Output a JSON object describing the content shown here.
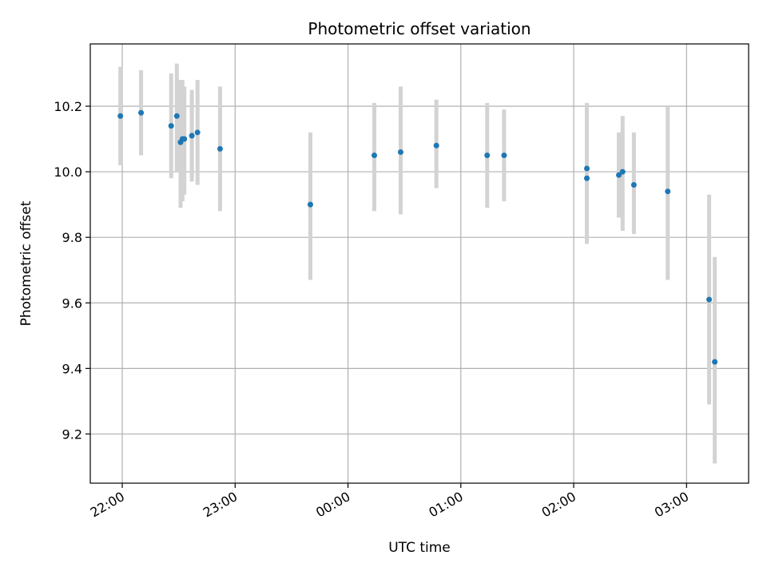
{
  "chart_data": {
    "type": "scatter",
    "title": "Photometric offset variation",
    "xlabel": "UTC time",
    "ylabel": "Photometric offset",
    "x_ticks": [
      "22:00",
      "23:00",
      "00:00",
      "01:00",
      "02:00",
      "03:00"
    ],
    "y_ticks": [
      "9.2",
      "9.4",
      "9.6",
      "9.8",
      "10.0",
      "10.2"
    ],
    "y_tick_values": [
      9.2,
      9.4,
      9.6,
      9.8,
      10.0,
      10.2
    ],
    "xlim": [
      "21:43",
      "03:33"
    ],
    "ylim": [
      9.05,
      10.39
    ],
    "grid": true,
    "marker_color": "#1f77b4",
    "errorbar_color": "#d3d3d3",
    "series": [
      {
        "points": [
          {
            "x": "21:59",
            "y": 10.17,
            "ylow": 10.02,
            "yhigh": 10.32
          },
          {
            "x": "22:10",
            "y": 10.18,
            "ylow": 10.05,
            "yhigh": 10.31
          },
          {
            "x": "22:26",
            "y": 10.14,
            "ylow": 9.98,
            "yhigh": 10.3
          },
          {
            "x": "22:29",
            "y": 10.17,
            "ylow": 10.0,
            "yhigh": 10.33
          },
          {
            "x": "22:31",
            "y": 10.09,
            "ylow": 9.89,
            "yhigh": 10.28
          },
          {
            "x": "22:32",
            "y": 10.1,
            "ylow": 9.91,
            "yhigh": 10.28
          },
          {
            "x": "22:33",
            "y": 10.1,
            "ylow": 9.93,
            "yhigh": 10.26
          },
          {
            "x": "22:37",
            "y": 10.11,
            "ylow": 9.97,
            "yhigh": 10.25
          },
          {
            "x": "22:37",
            "y": 10.11,
            "ylow": 9.98,
            "yhigh": 10.24
          },
          {
            "x": "22:40",
            "y": 10.12,
            "ylow": 9.96,
            "yhigh": 10.28
          },
          {
            "x": "22:52",
            "y": 10.07,
            "ylow": 9.88,
            "yhigh": 10.26
          },
          {
            "x": "23:40",
            "y": 9.9,
            "ylow": 9.67,
            "yhigh": 10.12
          },
          {
            "x": "00:14",
            "y": 10.05,
            "ylow": 9.88,
            "yhigh": 10.21
          },
          {
            "x": "00:28",
            "y": 10.06,
            "ylow": 9.87,
            "yhigh": 10.26
          },
          {
            "x": "00:47",
            "y": 10.08,
            "ylow": 9.95,
            "yhigh": 10.22
          },
          {
            "x": "01:14",
            "y": 10.05,
            "ylow": 9.89,
            "yhigh": 10.21
          },
          {
            "x": "01:23",
            "y": 10.05,
            "ylow": 9.91,
            "yhigh": 10.19
          },
          {
            "x": "02:07",
            "y": 10.01,
            "ylow": 9.82,
            "yhigh": 10.21
          },
          {
            "x": "02:07",
            "y": 9.98,
            "ylow": 9.78,
            "yhigh": 10.19
          },
          {
            "x": "02:24",
            "y": 9.99,
            "ylow": 9.86,
            "yhigh": 10.12
          },
          {
            "x": "02:26",
            "y": 10.0,
            "ylow": 9.82,
            "yhigh": 10.17
          },
          {
            "x": "02:32",
            "y": 9.96,
            "ylow": 9.81,
            "yhigh": 10.12
          },
          {
            "x": "02:50",
            "y": 9.94,
            "ylow": 9.67,
            "yhigh": 10.2
          },
          {
            "x": "03:12",
            "y": 9.61,
            "ylow": 9.29,
            "yhigh": 9.93
          },
          {
            "x": "03:15",
            "y": 9.42,
            "ylow": 9.11,
            "yhigh": 9.74
          }
        ]
      }
    ]
  }
}
